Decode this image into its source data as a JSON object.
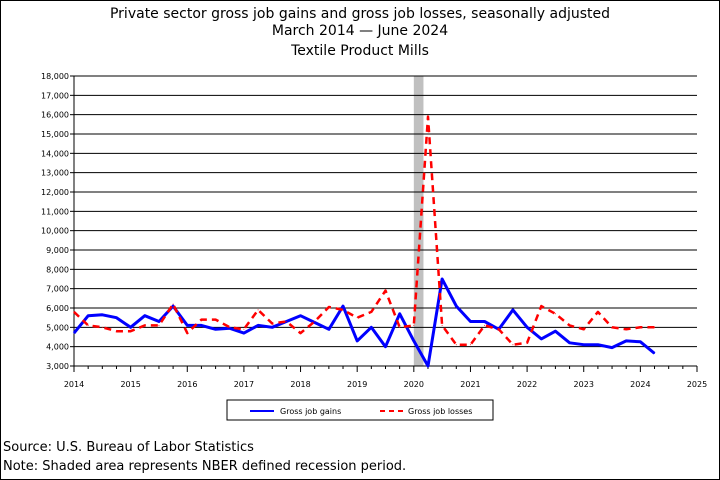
{
  "title": {
    "line1": "Private sector gross job gains and gross job losses, seasonally adjusted",
    "line2": "March 2014 — June 2024",
    "line3": "Textile Product Mills"
  },
  "footer": {
    "source": "Source: U.S. Bureau of Labor Statistics",
    "note": "Note: Shaded area represents NBER defined recession period."
  },
  "chart_data": {
    "type": "line",
    "x_axis": {
      "min": 2014,
      "max": 2025,
      "ticks": [
        "2014",
        "2015",
        "2016",
        "2017",
        "2018",
        "2019",
        "2020",
        "2021",
        "2022",
        "2023",
        "2024",
        "2025"
      ]
    },
    "y_axis": {
      "min": 3000,
      "max": 18000,
      "step": 1000,
      "tick_labels": [
        "3,000",
        "4,000",
        "5,000",
        "6,000",
        "7,000",
        "8,000",
        "9,000",
        "10,000",
        "11,000",
        "12,000",
        "13,000",
        "14,000",
        "15,000",
        "16,000",
        "17,000",
        "18,000"
      ]
    },
    "grid": "horizontal",
    "recession_band": {
      "start": 2020.0,
      "end": 2020.17,
      "color": "#c0c0c0"
    },
    "quarters": [
      "2014Q1",
      "2014Q2",
      "2014Q3",
      "2014Q4",
      "2015Q1",
      "2015Q2",
      "2015Q3",
      "2015Q4",
      "2016Q1",
      "2016Q2",
      "2016Q3",
      "2016Q4",
      "2017Q1",
      "2017Q2",
      "2017Q3",
      "2017Q4",
      "2018Q1",
      "2018Q2",
      "2018Q3",
      "2018Q4",
      "2019Q1",
      "2019Q2",
      "2019Q3",
      "2019Q4",
      "2020Q1",
      "2020Q2",
      "2020Q3",
      "2020Q4",
      "2021Q1",
      "2021Q2",
      "2021Q3",
      "2021Q4",
      "2022Q1",
      "2022Q2",
      "2022Q3",
      "2022Q4",
      "2023Q1",
      "2023Q2",
      "2023Q3",
      "2023Q4",
      "2024Q1",
      "2024Q2"
    ],
    "series": [
      {
        "name": "Gross job gains",
        "color": "#0000ff",
        "style": "solid",
        "values": [
          4700,
          5600,
          5650,
          5500,
          5000,
          5600,
          5300,
          6100,
          5100,
          5100,
          4900,
          4950,
          4700,
          5100,
          5000,
          5300,
          5600,
          5250,
          4900,
          6100,
          4300,
          5000,
          4000,
          5700,
          4300,
          3000,
          7500,
          6100,
          5300,
          5300,
          4900,
          5900,
          5000,
          4400,
          4800,
          4200,
          4100,
          4100,
          3950,
          4300,
          4250,
          3650
        ]
      },
      {
        "name": "Gross job losses",
        "color": "#ff0000",
        "style": "dashed",
        "values": [
          5800,
          5100,
          5000,
          4800,
          4800,
          5100,
          5100,
          6200,
          4700,
          5400,
          5400,
          5000,
          4900,
          5900,
          5200,
          5300,
          4700,
          5300,
          6050,
          5900,
          5500,
          5800,
          6900,
          5000,
          5100,
          15900,
          5100,
          4100,
          4100,
          5100,
          4900,
          4100,
          4200,
          6100,
          5700,
          5100,
          4900,
          5800,
          5000,
          4900,
          5000,
          5000
        ]
      }
    ],
    "legend": {
      "position": "bottom-center"
    }
  }
}
